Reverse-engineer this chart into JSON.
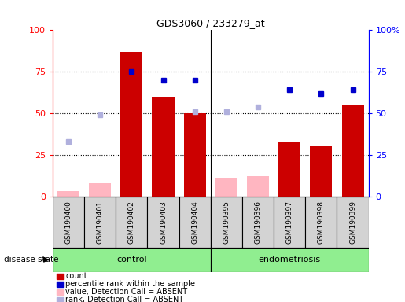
{
  "title": "GDS3060 / 233279_at",
  "samples": [
    "GSM190400",
    "GSM190401",
    "GSM190402",
    "GSM190403",
    "GSM190404",
    "GSM190395",
    "GSM190396",
    "GSM190397",
    "GSM190398",
    "GSM190399"
  ],
  "groups": [
    "control",
    "control",
    "control",
    "control",
    "control",
    "endometriosis",
    "endometriosis",
    "endometriosis",
    "endometriosis",
    "endometriosis"
  ],
  "count_values": [
    null,
    null,
    87,
    60,
    50,
    null,
    null,
    33,
    30,
    55
  ],
  "count_absent": [
    3,
    8,
    null,
    null,
    null,
    11,
    12,
    null,
    null,
    null
  ],
  "rank_values": [
    null,
    null,
    75,
    70,
    70,
    null,
    null,
    64,
    62,
    64
  ],
  "rank_absent": [
    33,
    49,
    null,
    null,
    51,
    51,
    54,
    null,
    null,
    null
  ],
  "count_bar_color": "#cc0000",
  "count_absent_color": "#ffb6c1",
  "rank_dot_color": "#0000cc",
  "rank_absent_color": "#b0b0dd",
  "ylim_left": [
    0,
    100
  ],
  "ylim_right": [
    0,
    100
  ],
  "grid_values": [
    25,
    50,
    75
  ],
  "group_color": "#90ee90",
  "gray_box_color": "#d3d3d3",
  "legend_labels": [
    "count",
    "percentile rank within the sample",
    "value, Detection Call = ABSENT",
    "rank, Detection Call = ABSENT"
  ],
  "legend_colors": [
    "#cc0000",
    "#0000cc",
    "#ffb6c1",
    "#b0b0dd"
  ]
}
